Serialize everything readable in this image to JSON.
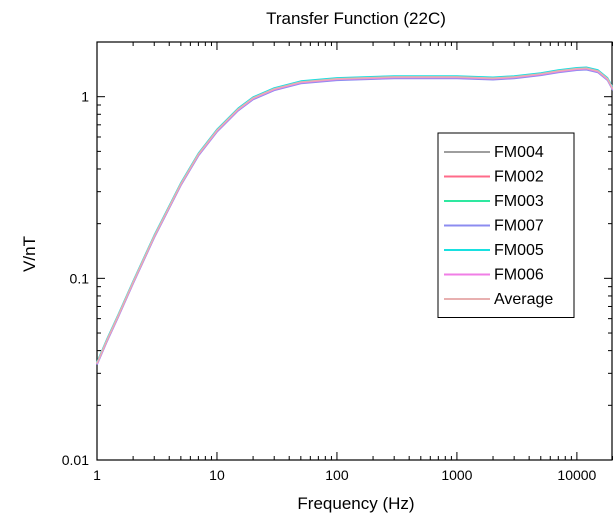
{
  "chart_data": {
    "type": "line",
    "title": "Transfer Function (22C)",
    "xlabel": "Frequency (Hz)",
    "ylabel": "V/nT",
    "xscale": "log",
    "yscale": "log",
    "xlim": [
      1,
      20000
    ],
    "ylim": [
      0.01,
      2
    ],
    "xticks": [
      1,
      10,
      100,
      1000,
      10000
    ],
    "xtick_labels": [
      "1",
      "10",
      "100",
      "1000",
      "10000"
    ],
    "yticks": [
      0.01,
      0.1,
      1
    ],
    "ytick_labels": [
      "0.01",
      "0.1",
      "1"
    ],
    "grid": false,
    "legend_position": "right",
    "x": [
      1,
      1.2,
      1.5,
      2,
      3,
      5,
      7,
      10,
      15,
      20,
      30,
      50,
      100,
      300,
      500,
      1000,
      2000,
      3000,
      5000,
      7000,
      10000,
      12000,
      15000,
      18000,
      20000
    ],
    "series": [
      {
        "name": "FM004",
        "color": "#9e9e9e",
        "values": [
          0.034,
          0.045,
          0.062,
          0.095,
          0.17,
          0.33,
          0.48,
          0.65,
          0.85,
          0.98,
          1.1,
          1.2,
          1.25,
          1.28,
          1.28,
          1.28,
          1.26,
          1.28,
          1.33,
          1.38,
          1.42,
          1.43,
          1.38,
          1.25,
          1.1
        ]
      },
      {
        "name": "FM002",
        "color": "#ff6b8a",
        "values": [
          0.034,
          0.045,
          0.062,
          0.095,
          0.17,
          0.33,
          0.48,
          0.65,
          0.85,
          0.98,
          1.1,
          1.2,
          1.25,
          1.28,
          1.28,
          1.28,
          1.26,
          1.28,
          1.33,
          1.38,
          1.42,
          1.43,
          1.38,
          1.25,
          1.1
        ]
      },
      {
        "name": "FM003",
        "color": "#2ee8a0",
        "values": [
          0.034,
          0.045,
          0.062,
          0.095,
          0.17,
          0.33,
          0.48,
          0.65,
          0.85,
          0.98,
          1.1,
          1.2,
          1.25,
          1.28,
          1.28,
          1.28,
          1.26,
          1.28,
          1.33,
          1.38,
          1.42,
          1.43,
          1.38,
          1.25,
          1.1
        ]
      },
      {
        "name": "FM007",
        "color": "#8c8cf0",
        "values": [
          0.034,
          0.045,
          0.062,
          0.095,
          0.17,
          0.33,
          0.48,
          0.65,
          0.85,
          0.98,
          1.1,
          1.2,
          1.25,
          1.28,
          1.28,
          1.28,
          1.26,
          1.28,
          1.33,
          1.38,
          1.42,
          1.43,
          1.38,
          1.25,
          1.1
        ]
      },
      {
        "name": "FM005",
        "color": "#18e0e0",
        "values": [
          0.034,
          0.045,
          0.062,
          0.095,
          0.17,
          0.33,
          0.48,
          0.65,
          0.85,
          0.98,
          1.1,
          1.2,
          1.25,
          1.28,
          1.28,
          1.28,
          1.26,
          1.28,
          1.33,
          1.38,
          1.42,
          1.43,
          1.38,
          1.25,
          1.1
        ]
      },
      {
        "name": "FM006",
        "color": "#f07ee6",
        "values": [
          0.034,
          0.045,
          0.062,
          0.095,
          0.17,
          0.33,
          0.48,
          0.65,
          0.85,
          0.98,
          1.1,
          1.2,
          1.25,
          1.28,
          1.28,
          1.28,
          1.26,
          1.28,
          1.33,
          1.38,
          1.42,
          1.43,
          1.38,
          1.25,
          1.1
        ]
      },
      {
        "name": "Average",
        "color": "#e8b0b0",
        "values": [
          0.034,
          0.045,
          0.062,
          0.095,
          0.17,
          0.33,
          0.48,
          0.65,
          0.85,
          0.98,
          1.1,
          1.2,
          1.25,
          1.28,
          1.28,
          1.28,
          1.26,
          1.28,
          1.33,
          1.38,
          1.42,
          1.43,
          1.38,
          1.25,
          1.1
        ]
      }
    ]
  }
}
